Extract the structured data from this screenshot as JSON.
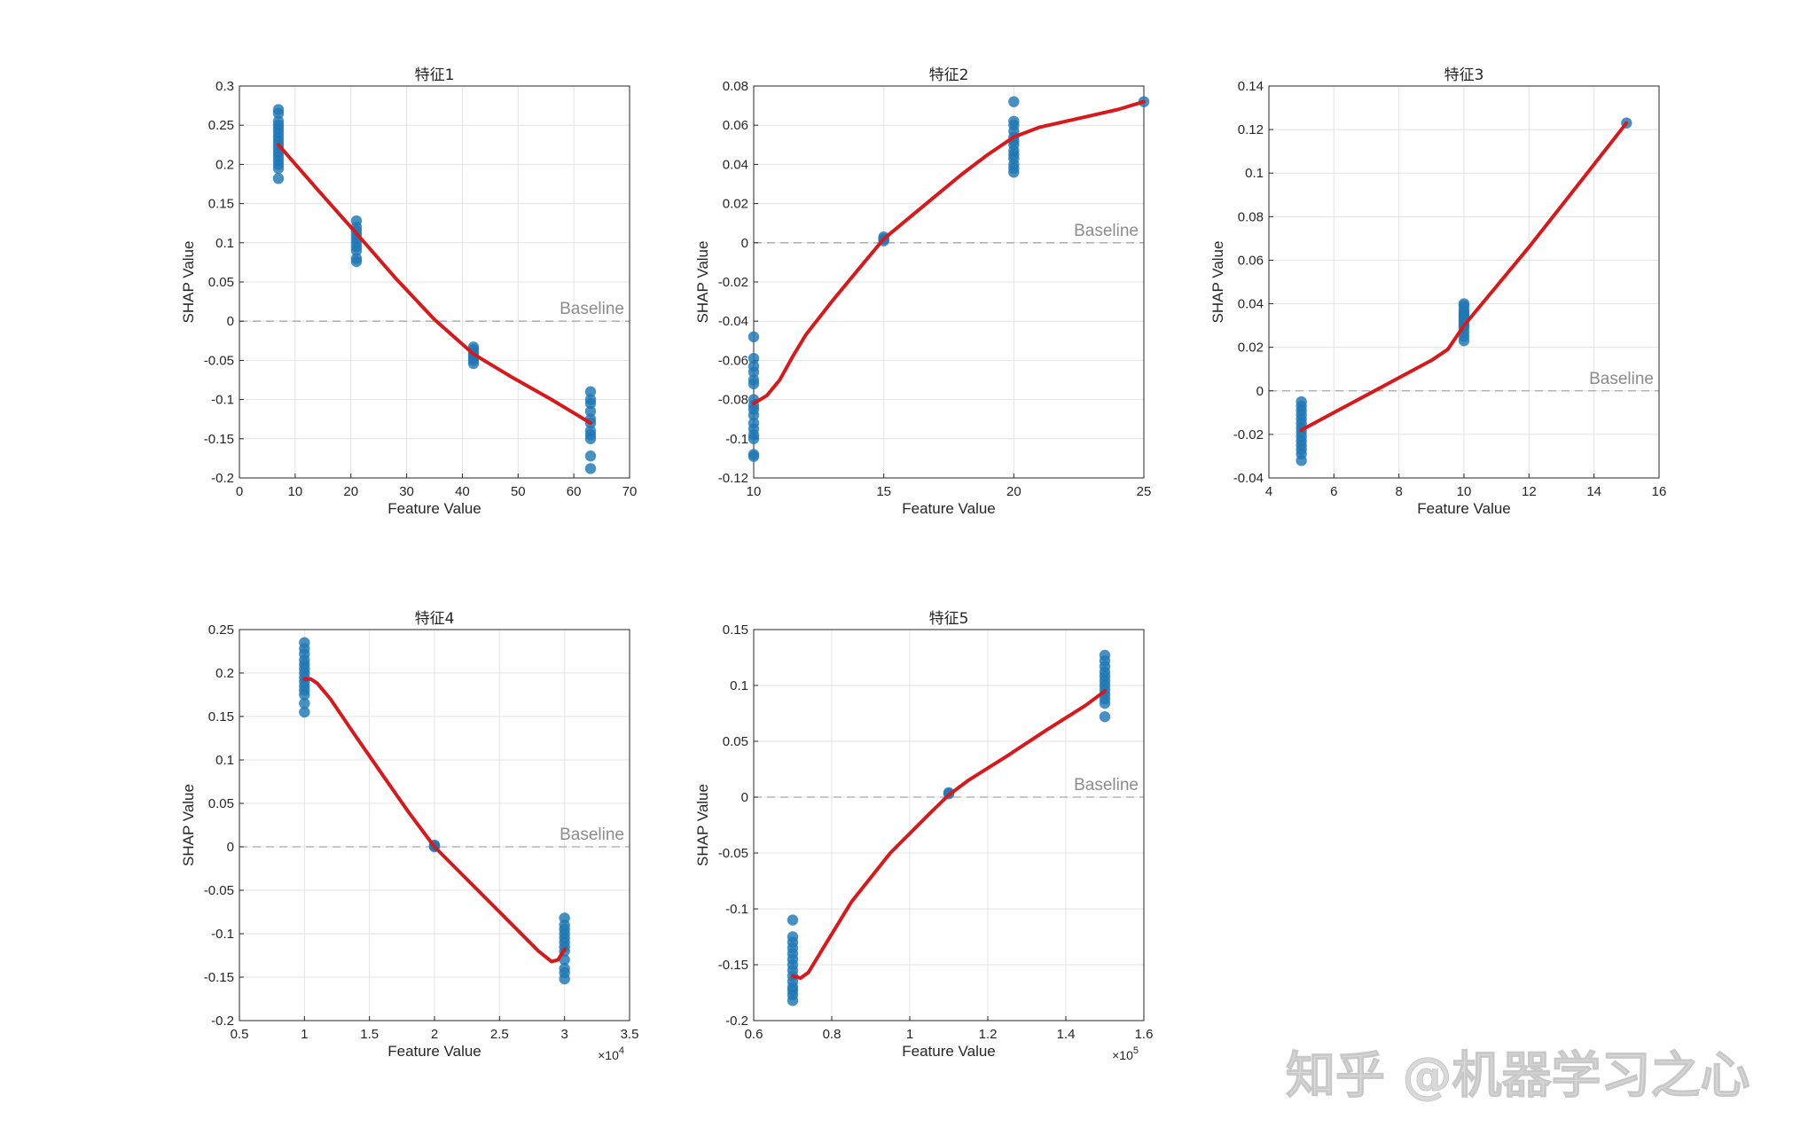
{
  "watermark": "知乎 @机器学习之心",
  "chart_data": [
    {
      "type": "scatter",
      "title": "特征1",
      "xlabel": "Feature Value",
      "ylabel": "SHAP Value",
      "xlim": [
        0,
        70
      ],
      "ylim": [
        -0.2,
        0.3
      ],
      "xticks": [
        0,
        10,
        20,
        30,
        40,
        50,
        60,
        70
      ],
      "xtick_labels": [
        "0",
        "10",
        "20",
        "30",
        "40",
        "50",
        "60",
        "70"
      ],
      "yticks": [
        -0.2,
        -0.15,
        -0.1,
        -0.05,
        0,
        0.05,
        0.1,
        0.15,
        0.2,
        0.25,
        0.3
      ],
      "ytick_labels": [
        "-0.2",
        "-0.15",
        "-0.1",
        "-0.05",
        "0",
        "0.05",
        "0.1",
        "0.15",
        "0.2",
        "0.25",
        "0.3"
      ],
      "x_exponent": "",
      "grid": true,
      "baseline_label": "Baseline",
      "baseline_value": 0,
      "points": {
        "x": [
          7,
          7,
          7,
          7,
          7,
          7,
          7,
          7,
          7,
          7,
          7,
          7,
          7,
          7,
          7,
          7,
          21,
          21,
          21,
          21,
          21,
          21,
          21,
          21,
          21,
          21,
          42,
          42,
          42,
          42,
          42,
          42,
          42,
          63,
          63,
          63,
          63,
          63,
          63,
          63,
          63,
          63,
          63,
          63
        ],
        "y": [
          0.27,
          0.265,
          0.255,
          0.25,
          0.245,
          0.24,
          0.235,
          0.23,
          0.225,
          0.22,
          0.215,
          0.21,
          0.205,
          0.2,
          0.195,
          0.182,
          0.128,
          0.12,
          0.115,
          0.11,
          0.105,
          0.1,
          0.095,
          0.09,
          0.08,
          0.076,
          -0.033,
          -0.036,
          -0.04,
          -0.043,
          -0.047,
          -0.05,
          -0.054,
          -0.09,
          -0.1,
          -0.105,
          -0.115,
          -0.125,
          -0.13,
          -0.14,
          -0.145,
          -0.15,
          -0.172,
          -0.188
        ]
      },
      "fit_line": {
        "x": [
          7,
          14,
          21,
          28,
          35,
          42,
          49,
          56,
          63
        ],
        "y": [
          0.225,
          0.168,
          0.112,
          0.055,
          0.002,
          -0.042,
          -0.072,
          -0.1,
          -0.13
        ]
      }
    },
    {
      "type": "scatter",
      "title": "特征2",
      "xlabel": "Feature Value",
      "ylabel": "SHAP Value",
      "xlim": [
        10,
        25
      ],
      "ylim": [
        -0.12,
        0.08
      ],
      "xticks": [
        10,
        15,
        20,
        25
      ],
      "xtick_labels": [
        "10",
        "15",
        "20",
        "25"
      ],
      "yticks": [
        -0.12,
        -0.1,
        -0.08,
        -0.06,
        -0.04,
        -0.02,
        0,
        0.02,
        0.04,
        0.06,
        0.08
      ],
      "ytick_labels": [
        "-0.12",
        "-0.1",
        "-0.08",
        "-0.06",
        "-0.04",
        "-0.02",
        "0",
        "0.02",
        "0.04",
        "0.06",
        "0.08"
      ],
      "x_exponent": "",
      "grid": true,
      "baseline_label": "Baseline",
      "baseline_value": 0,
      "points": {
        "x": [
          10,
          10,
          10,
          10,
          10,
          10,
          10,
          10,
          10,
          10,
          10,
          10,
          10,
          10,
          10,
          10,
          15,
          15,
          15,
          20,
          20,
          20,
          20,
          20,
          20,
          20,
          20,
          20,
          20,
          20,
          20,
          20,
          25
        ],
        "y": [
          -0.048,
          -0.059,
          -0.063,
          -0.066,
          -0.07,
          -0.072,
          -0.08,
          -0.083,
          -0.085,
          -0.088,
          -0.092,
          -0.095,
          -0.098,
          -0.1,
          -0.108,
          -0.109,
          0.003,
          0.002,
          0.001,
          0.072,
          0.062,
          0.06,
          0.057,
          0.054,
          0.052,
          0.05,
          0.047,
          0.045,
          0.043,
          0.04,
          0.038,
          0.036,
          0.072
        ]
      },
      "fit_line": {
        "x": [
          10,
          10.5,
          11,
          11.5,
          12,
          13,
          14,
          15,
          16,
          17,
          18,
          19,
          20,
          21,
          22,
          23,
          24,
          25
        ],
        "y": [
          -0.082,
          -0.078,
          -0.07,
          -0.058,
          -0.047,
          -0.03,
          -0.014,
          0.002,
          0.013,
          0.024,
          0.035,
          0.045,
          0.054,
          0.059,
          0.062,
          0.065,
          0.068,
          0.072
        ]
      }
    },
    {
      "type": "scatter",
      "title": "特征3",
      "xlabel": "Feature Value",
      "ylabel": "SHAP Value",
      "xlim": [
        4,
        16
      ],
      "ylim": [
        -0.04,
        0.14
      ],
      "xticks": [
        4,
        6,
        8,
        10,
        12,
        14,
        16
      ],
      "xtick_labels": [
        "4",
        "6",
        "8",
        "10",
        "12",
        "14",
        "16"
      ],
      "yticks": [
        -0.04,
        -0.02,
        0,
        0.02,
        0.04,
        0.06,
        0.08,
        0.1,
        0.12,
        0.14
      ],
      "ytick_labels": [
        "-0.04",
        "-0.02",
        "0",
        "0.02",
        "0.04",
        "0.06",
        "0.08",
        "0.1",
        "0.12",
        "0.14"
      ],
      "x_exponent": "",
      "grid": true,
      "baseline_label": "Baseline",
      "baseline_value": 0,
      "points": {
        "x": [
          5,
          5,
          5,
          5,
          5,
          5,
          5,
          5,
          5,
          5,
          5,
          5,
          5,
          5,
          10,
          10,
          10,
          10,
          10,
          10,
          10,
          10,
          10,
          10,
          10,
          10,
          10,
          10,
          15
        ],
        "y": [
          -0.005,
          -0.007,
          -0.009,
          -0.011,
          -0.013,
          -0.015,
          -0.017,
          -0.019,
          -0.021,
          -0.023,
          -0.025,
          -0.027,
          -0.029,
          -0.032,
          0.04,
          0.039,
          0.037,
          0.036,
          0.035,
          0.034,
          0.033,
          0.032,
          0.031,
          0.03,
          0.029,
          0.027,
          0.025,
          0.023,
          0.123
        ]
      },
      "fit_line": {
        "x": [
          5,
          6,
          7,
          8,
          9,
          9.5,
          10,
          11,
          12,
          13,
          14,
          15
        ],
        "y": [
          -0.018,
          -0.01,
          -0.002,
          0.006,
          0.014,
          0.019,
          0.03,
          0.048,
          0.066,
          0.085,
          0.104,
          0.123
        ]
      }
    },
    {
      "type": "scatter",
      "title": "特征4",
      "xlabel": "Feature Value",
      "ylabel": "SHAP Value",
      "xlim": [
        5000,
        35000
      ],
      "ylim": [
        -0.2,
        0.25
      ],
      "xticks": [
        5000,
        10000,
        15000,
        20000,
        25000,
        30000,
        35000
      ],
      "xtick_labels": [
        "0.5",
        "1",
        "1.5",
        "2",
        "2.5",
        "3",
        "3.5"
      ],
      "yticks": [
        -0.2,
        -0.15,
        -0.1,
        -0.05,
        0,
        0.05,
        0.1,
        0.15,
        0.2,
        0.25
      ],
      "ytick_labels": [
        "-0.2",
        "-0.15",
        "-0.1",
        "-0.05",
        "0",
        "0.05",
        "0.1",
        "0.15",
        "0.2",
        "0.25"
      ],
      "x_exponent": "×10^4",
      "grid": true,
      "baseline_label": "Baseline",
      "baseline_value": 0,
      "points": {
        "x": [
          10000,
          10000,
          10000,
          10000,
          10000,
          10000,
          10000,
          10000,
          10000,
          10000,
          10000,
          10000,
          10000,
          10000,
          20000,
          20000,
          20000,
          30000,
          30000,
          30000,
          30000,
          30000,
          30000,
          30000,
          30000,
          30000,
          30000,
          30000,
          30000
        ],
        "y": [
          0.235,
          0.228,
          0.222,
          0.215,
          0.21,
          0.205,
          0.2,
          0.195,
          0.19,
          0.185,
          0.18,
          0.175,
          0.165,
          0.155,
          0.002,
          0.001,
          0,
          -0.082,
          -0.09,
          -0.095,
          -0.1,
          -0.105,
          -0.11,
          -0.115,
          -0.12,
          -0.13,
          -0.14,
          -0.145,
          -0.152
        ]
      },
      "fit_line": {
        "x": [
          10000,
          10500,
          11000,
          12000,
          14000,
          16000,
          18000,
          20000,
          22000,
          24000,
          26000,
          28000,
          29000,
          29500,
          30000
        ],
        "y": [
          0.193,
          0.193,
          0.188,
          0.17,
          0.126,
          0.083,
          0.04,
          0.0,
          -0.03,
          -0.06,
          -0.09,
          -0.12,
          -0.132,
          -0.13,
          -0.118
        ]
      }
    },
    {
      "type": "scatter",
      "title": "特征5",
      "xlabel": "Feature Value",
      "ylabel": "SHAP Value",
      "xlim": [
        60000,
        160000
      ],
      "ylim": [
        -0.2,
        0.15
      ],
      "xticks": [
        60000,
        80000,
        100000,
        120000,
        140000,
        160000
      ],
      "xtick_labels": [
        "0.6",
        "0.8",
        "1",
        "1.2",
        "1.4",
        "1.6"
      ],
      "yticks": [
        -0.2,
        -0.15,
        -0.1,
        -0.05,
        0,
        0.05,
        0.1,
        0.15
      ],
      "ytick_labels": [
        "-0.2",
        "-0.15",
        "-0.1",
        "-0.05",
        "0",
        "0.05",
        "0.1",
        "0.15"
      ],
      "x_exponent": "×10^5",
      "grid": true,
      "baseline_label": "Baseline",
      "baseline_value": 0,
      "points": {
        "x": [
          70000,
          70000,
          70000,
          70000,
          70000,
          70000,
          70000,
          70000,
          70000,
          70000,
          70000,
          70000,
          70000,
          70000,
          110000,
          110000,
          150000,
          150000,
          150000,
          150000,
          150000,
          150000,
          150000,
          150000,
          150000,
          150000,
          150000,
          150000
        ],
        "y": [
          -0.11,
          -0.125,
          -0.13,
          -0.135,
          -0.14,
          -0.145,
          -0.15,
          -0.155,
          -0.16,
          -0.165,
          -0.17,
          -0.173,
          -0.177,
          -0.182,
          0.004,
          0.003,
          0.127,
          0.122,
          0.117,
          0.112,
          0.108,
          0.104,
          0.1,
          0.096,
          0.092,
          0.088,
          0.084,
          0.072
        ]
      },
      "fit_line": {
        "x": [
          70000,
          72000,
          74000,
          78000,
          85000,
          95000,
          105000,
          110000,
          115000,
          125000,
          135000,
          145000,
          150000
        ],
        "y": [
          -0.16,
          -0.162,
          -0.157,
          -0.134,
          -0.094,
          -0.05,
          -0.015,
          0.002,
          0.015,
          0.037,
          0.06,
          0.082,
          0.095
        ]
      }
    }
  ]
}
